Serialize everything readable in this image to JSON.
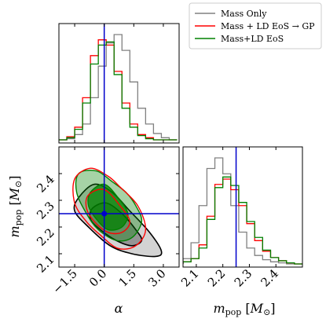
{
  "chart_data": {
    "type": "corner",
    "colors": {
      "mass_only": "#808080",
      "mass_ld_gp": "#ff0000",
      "mass_ld": "#008000",
      "truth": "#0000cc"
    },
    "legend": {
      "placement": "top-right",
      "entries": [
        {
          "key": "mass_only",
          "label": "Mass Only"
        },
        {
          "key": "mass_ld_gp",
          "label": "Mass + LD EoS → GP"
        },
        {
          "key": "mass_ld",
          "label": "Mass+LD EoS"
        }
      ]
    },
    "truth": {
      "alpha": 0.0,
      "m_pop": 2.25
    },
    "axes": {
      "alpha": {
        "label": "α",
        "range": [
          -2.3,
          3.8
        ],
        "ticks": [
          -1.5,
          0.0,
          1.5,
          3.0
        ],
        "tick_labels": [
          "−1.5",
          "0.0",
          "1.5",
          "3.0"
        ]
      },
      "m_pop": {
        "label": "m_pop [M_⊙]",
        "range": [
          2.05,
          2.5
        ],
        "ticks": [
          2.1,
          2.2,
          2.3,
          2.4
        ],
        "tick_labels": [
          "2.1",
          "2.2",
          "2.3",
          "2.4"
        ]
      }
    },
    "hist_alpha": {
      "bin_edges": [
        -2.3,
        -1.9,
        -1.5,
        -1.1,
        -0.7,
        -0.3,
        0.1,
        0.5,
        0.9,
        1.3,
        1.7,
        2.1,
        2.5,
        2.9,
        3.3,
        3.7
      ],
      "series": [
        {
          "key": "mass_only",
          "values": [
            0,
            0.01,
            0.05,
            0.15,
            0.4,
            0.7,
            0.92,
            1.0,
            0.85,
            0.55,
            0.3,
            0.15,
            0.06,
            0.02,
            0
          ]
        },
        {
          "key": "mass_ld_gp",
          "values": [
            0,
            0.03,
            0.12,
            0.4,
            0.8,
            0.95,
            0.9,
            0.65,
            0.35,
            0.15,
            0.05,
            0.02,
            0,
            0,
            0
          ]
        },
        {
          "key": "mass_ld",
          "values": [
            0,
            0.02,
            0.1,
            0.35,
            0.72,
            0.9,
            0.93,
            0.62,
            0.3,
            0.12,
            0.04,
            0.01,
            0,
            0,
            0
          ]
        }
      ]
    },
    "hist_mpop": {
      "bin_edges": [
        2.05,
        2.08,
        2.11,
        2.14,
        2.17,
        2.2,
        2.23,
        2.26,
        2.29,
        2.32,
        2.35,
        2.38,
        2.41,
        2.44,
        2.47,
        2.5
      ],
      "series": [
        {
          "key": "mass_only",
          "values": [
            0.05,
            0.2,
            0.55,
            0.9,
            1.0,
            0.85,
            0.55,
            0.3,
            0.15,
            0.08,
            0.04,
            0.02,
            0.01,
            0,
            0
          ]
        },
        {
          "key": "mass_ld_gp",
          "values": [
            0.02,
            0.05,
            0.18,
            0.45,
            0.75,
            0.8,
            0.7,
            0.55,
            0.38,
            0.22,
            0.12,
            0.06,
            0.03,
            0.01,
            0
          ]
        },
        {
          "key": "mass_ld",
          "values": [
            0.02,
            0.05,
            0.15,
            0.42,
            0.72,
            0.82,
            0.74,
            0.58,
            0.4,
            0.25,
            0.13,
            0.06,
            0.03,
            0.01,
            0
          ]
        }
      ]
    },
    "contours_2d": [
      {
        "key": "mass_only",
        "fill": true,
        "levels": [
          {
            "level": "outer",
            "points": [
              [
                -1.3,
                2.31
              ],
              [
                -0.5,
                2.36
              ],
              [
                0.4,
                2.33
              ],
              [
                1.3,
                2.26
              ],
              [
                2.3,
                2.18
              ],
              [
                2.9,
                2.11
              ],
              [
                2.6,
                2.09
              ],
              [
                1.4,
                2.1
              ],
              [
                0.3,
                2.13
              ],
              [
                -0.8,
                2.2
              ],
              [
                -1.5,
                2.26
              ]
            ]
          },
          {
            "level": "inner",
            "points": [
              [
                -0.6,
                2.27
              ],
              [
                0.1,
                2.29
              ],
              [
                0.9,
                2.25
              ],
              [
                1.6,
                2.19
              ],
              [
                1.9,
                2.15
              ],
              [
                1.4,
                2.13
              ],
              [
                0.6,
                2.15
              ],
              [
                -0.2,
                2.19
              ],
              [
                -0.7,
                2.23
              ]
            ]
          }
        ]
      },
      {
        "key": "mass_ld",
        "fill": true,
        "levels": [
          {
            "level": "outer",
            "points": [
              [
                -1.3,
                2.4
              ],
              [
                -0.4,
                2.41
              ],
              [
                0.4,
                2.37
              ],
              [
                1.1,
                2.33
              ],
              [
                1.6,
                2.28
              ],
              [
                1.9,
                2.22
              ],
              [
                1.4,
                2.16
              ],
              [
                0.6,
                2.15
              ],
              [
                -0.3,
                2.19
              ],
              [
                -0.9,
                2.25
              ],
              [
                -1.4,
                2.33
              ]
            ]
          },
          {
            "level": "inner",
            "points": [
              [
                -0.7,
                2.33
              ],
              [
                0.0,
                2.36
              ],
              [
                0.7,
                2.31
              ],
              [
                1.2,
                2.25
              ],
              [
                0.9,
                2.2
              ],
              [
                0.2,
                2.19
              ],
              [
                -0.4,
                2.23
              ],
              [
                -0.8,
                2.28
              ]
            ]
          }
        ]
      },
      {
        "key": "mass_ld_gp",
        "fill": false,
        "levels": [
          {
            "level": "outer",
            "points": [
              [
                -1.5,
                2.38
              ],
              [
                -0.7,
                2.42
              ],
              [
                0.2,
                2.39
              ],
              [
                0.8,
                2.35
              ],
              [
                1.7,
                2.28
              ],
              [
                2.1,
                2.19
              ],
              [
                1.6,
                2.13
              ],
              [
                0.7,
                2.12
              ],
              [
                -0.2,
                2.17
              ],
              [
                -0.9,
                2.22
              ],
              [
                -1.5,
                2.29
              ]
            ]
          },
          {
            "level": "inner",
            "points": [
              [
                -0.8,
                2.32
              ],
              [
                0.0,
                2.34
              ],
              [
                0.8,
                2.28
              ],
              [
                1.3,
                2.22
              ],
              [
                0.9,
                2.18
              ],
              [
                0.2,
                2.18
              ],
              [
                -0.5,
                2.22
              ],
              [
                -0.9,
                2.27
              ]
            ]
          }
        ]
      }
    ]
  }
}
